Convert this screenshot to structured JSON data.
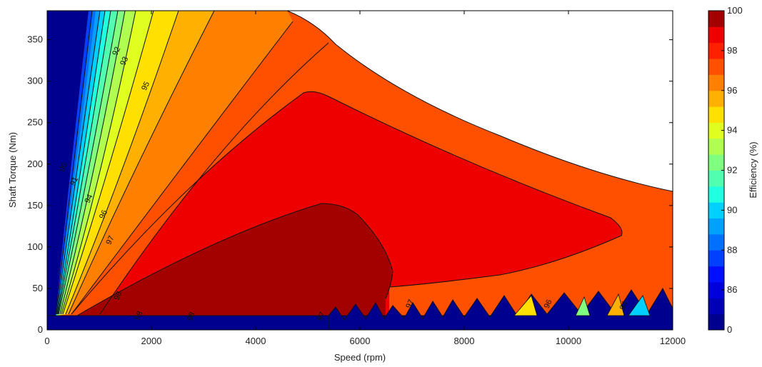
{
  "chart_data": {
    "type": "contour",
    "title": "",
    "xlabel": "Speed (rpm)",
    "ylabel": "Shaft Torque (Nm)",
    "xlim": [
      0,
      12000
    ],
    "ylim": [
      0,
      385
    ],
    "x_ticks": [
      0,
      2000,
      4000,
      6000,
      8000,
      10000,
      12000
    ],
    "y_ticks": [
      0,
      50,
      100,
      150,
      200,
      250,
      300,
      350
    ],
    "colorbar": {
      "label": "Efficiency (%)",
      "range": [
        0,
        100
      ],
      "tick_labels": [
        "0",
        "86",
        "88",
        "90",
        "92",
        "94",
        "96",
        "98",
        "100"
      ],
      "colors": [
        "#00008f",
        "#0000b5",
        "#0000dd",
        "#0010ff",
        "#0040ff",
        "#0070ff",
        "#00a0ff",
        "#00d0ff",
        "#20ffe0",
        "#50ffb0",
        "#80ff80",
        "#b0ff50",
        "#e0ff20",
        "#ffe000",
        "#ffb000",
        "#ff8000",
        "#ff5000",
        "#ff2000",
        "#ee0000",
        "#a30000"
      ]
    },
    "contour_labels": [
      {
        "text": "92",
        "x": 1370,
        "y": 335
      },
      {
        "text": "93",
        "x": 1520,
        "y": 323
      },
      {
        "text": "95",
        "x": 1930,
        "y": 293
      },
      {
        "text": "90",
        "x": 350,
        "y": 195
      },
      {
        "text": "91",
        "x": 560,
        "y": 178
      },
      {
        "text": "94",
        "x": 840,
        "y": 157
      },
      {
        "text": "96",
        "x": 1120,
        "y": 138
      },
      {
        "text": "97",
        "x": 1250,
        "y": 107
      },
      {
        "text": "98",
        "x": 1400,
        "y": 40
      },
      {
        "text": "98",
        "x": 1800,
        "y": 16
      },
      {
        "text": "98",
        "x": 2800,
        "y": 15
      },
      {
        "text": "97",
        "x": 5300,
        "y": 15
      },
      {
        "text": "97",
        "x": 7000,
        "y": 30
      },
      {
        "text": "96",
        "x": 9650,
        "y": 30
      },
      {
        "text": "94",
        "x": 11100,
        "y": 28
      }
    ],
    "regions": [
      {
        "level": "below 84",
        "color": "#00008f"
      },
      {
        "level": "97-98",
        "color": "#ff5000"
      },
      {
        "level": "98-99",
        "color": "#ee0000"
      },
      {
        "level": "99-100",
        "color": "#a30000"
      }
    ]
  }
}
